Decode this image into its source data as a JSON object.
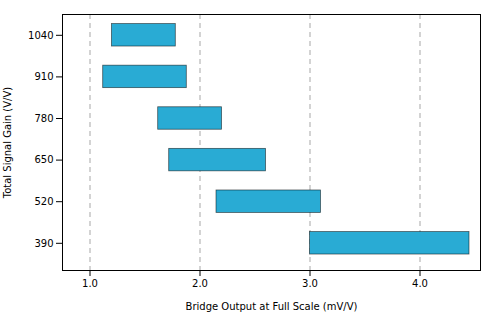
{
  "chart_data": {
    "type": "bar",
    "orientation": "horizontal",
    "y": [
      1040,
      910,
      780,
      650,
      520,
      390
    ],
    "x_start": [
      1.2,
      1.12,
      1.62,
      1.72,
      2.15,
      3.0
    ],
    "x_end": [
      1.78,
      1.88,
      2.2,
      2.6,
      3.1,
      4.45
    ],
    "color": "#29ABD4",
    "xlabel": "Bridge Output at Full Scale (mV/V)",
    "ylabel": "Total Signal Gain (V/V)",
    "xlim": [
      0.75,
      4.55
    ],
    "xticks": [
      {
        "value": 1.0,
        "label": "1.0"
      },
      {
        "value": 2.0,
        "label": "2.0"
      },
      {
        "value": 3.0,
        "label": "3.0"
      },
      {
        "value": 4.0,
        "label": "4.0"
      }
    ],
    "ylim": [
      305,
      1105
    ],
    "yticks": [
      390,
      520,
      650,
      780,
      910,
      1040
    ],
    "grid": "x"
  }
}
